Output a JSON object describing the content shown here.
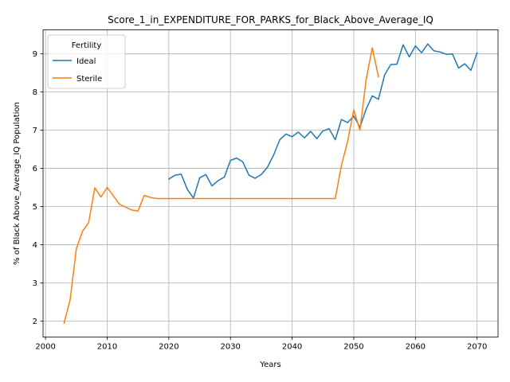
{
  "chart_data": {
    "type": "line",
    "title": "Score_1_in_EXPENDITURE_FOR_PARKS_for_Black_Above_Average_IQ",
    "xlabel": "Years",
    "ylabel": "% of Black Above_Average_IQ Population",
    "xlim": [
      1999.6,
      2073.4
    ],
    "ylim": [
      1.58,
      9.63
    ],
    "xticks": [
      2000,
      2010,
      2020,
      2030,
      2040,
      2050,
      2060,
      2070
    ],
    "yticks": [
      2,
      3,
      4,
      5,
      6,
      7,
      8,
      9
    ],
    "grid": true,
    "legend": {
      "title": "Fertility",
      "position": "top-left"
    },
    "series": [
      {
        "name": "Ideal",
        "color": "#1f77b4",
        "x": [
          2020,
          2021,
          2022,
          2023,
          2024,
          2025,
          2026,
          2027,
          2028,
          2029,
          2030,
          2031,
          2032,
          2033,
          2034,
          2035,
          2036,
          2037,
          2038,
          2039,
          2040,
          2041,
          2042,
          2043,
          2044,
          2045,
          2046,
          2047,
          2048,
          2049,
          2050,
          2051,
          2052,
          2053,
          2054,
          2055,
          2056,
          2057,
          2058,
          2059,
          2060,
          2061,
          2062,
          2063,
          2064,
          2065,
          2066,
          2067,
          2068,
          2069,
          2070
        ],
        "y": [
          5.72,
          5.82,
          5.85,
          5.45,
          5.22,
          5.75,
          5.84,
          5.54,
          5.68,
          5.77,
          6.21,
          6.27,
          6.17,
          5.82,
          5.74,
          5.84,
          6.03,
          6.35,
          6.75,
          6.9,
          6.83,
          6.95,
          6.8,
          6.97,
          6.78,
          6.98,
          7.04,
          6.75,
          7.28,
          7.2,
          7.37,
          7.08,
          7.55,
          7.9,
          7.81,
          8.45,
          8.72,
          8.73,
          9.24,
          8.92,
          9.21,
          9.03,
          9.26,
          9.08,
          9.05,
          8.99,
          9.0,
          8.63,
          8.74,
          8.57,
          9.03
        ]
      },
      {
        "name": "Sterile",
        "color": "#ff7f0e",
        "x": [
          2003,
          2004,
          2005,
          2006,
          2007,
          2008,
          2009,
          2010,
          2011,
          2012,
          2013,
          2014,
          2015,
          2016,
          2017,
          2018,
          2019,
          2020,
          2021,
          2022,
          2023,
          2024,
          2025,
          2026,
          2027,
          2028,
          2029,
          2030,
          2031,
          2032,
          2033,
          2034,
          2035,
          2036,
          2037,
          2038,
          2039,
          2040,
          2041,
          2042,
          2043,
          2044,
          2045,
          2046,
          2047,
          2048,
          2049,
          2050,
          2051,
          2052,
          2053,
          2054
        ],
        "y": [
          1.94,
          2.56,
          3.89,
          4.35,
          4.58,
          5.49,
          5.25,
          5.5,
          5.28,
          5.06,
          4.98,
          4.91,
          4.88,
          5.29,
          5.24,
          5.21,
          5.21,
          5.21,
          5.21,
          5.21,
          5.21,
          5.21,
          5.21,
          5.21,
          5.21,
          5.21,
          5.21,
          5.21,
          5.21,
          5.21,
          5.21,
          5.21,
          5.21,
          5.21,
          5.21,
          5.21,
          5.21,
          5.21,
          5.21,
          5.21,
          5.21,
          5.21,
          5.21,
          5.21,
          5.21,
          6.08,
          6.7,
          7.53,
          7.0,
          8.32,
          9.16,
          8.4
        ]
      }
    ]
  }
}
